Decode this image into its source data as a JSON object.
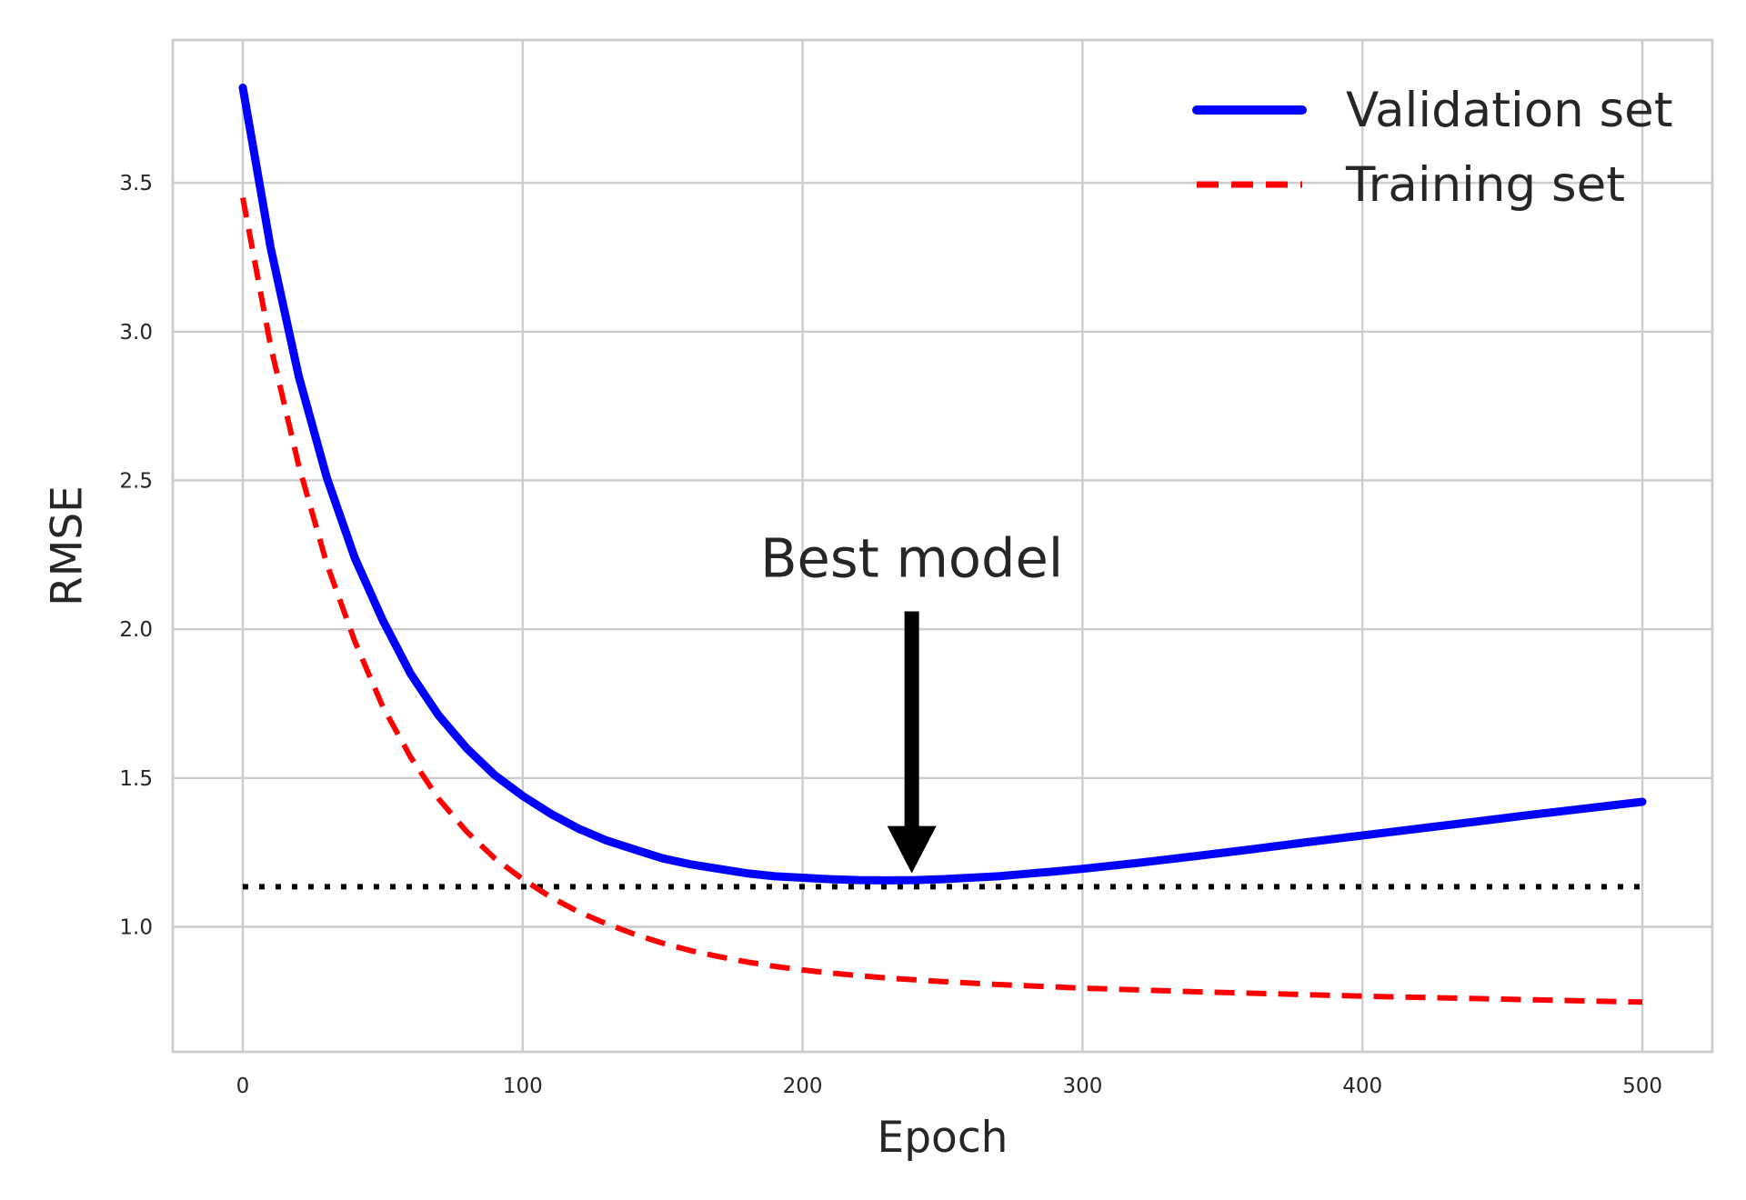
{
  "chart_data": {
    "type": "line",
    "title": "",
    "xlabel": "Epoch",
    "ylabel": "RMSE",
    "xlim": [
      -25,
      525
    ],
    "ylim": [
      0.58,
      3.98
    ],
    "xticks": [
      0,
      100,
      200,
      300,
      400,
      500
    ],
    "xtick_labels": [
      "0",
      "100",
      "200",
      "300",
      "400",
      "500"
    ],
    "yticks": [
      1.0,
      1.5,
      2.0,
      2.5,
      3.0,
      3.5
    ],
    "ytick_labels": [
      "1.0",
      "1.5",
      "2.0",
      "2.5",
      "3.0",
      "3.5"
    ],
    "grid": true,
    "legend_position": "top-right",
    "x": [
      0,
      10,
      20,
      30,
      40,
      50,
      60,
      70,
      80,
      90,
      100,
      110,
      120,
      130,
      140,
      150,
      160,
      170,
      180,
      190,
      200,
      210,
      220,
      230,
      240,
      250,
      260,
      270,
      280,
      290,
      300,
      320,
      340,
      360,
      380,
      400,
      420,
      440,
      460,
      480,
      500
    ],
    "series": [
      {
        "name": "Validation set",
        "color": "#0000ff",
        "style": "solid",
        "values": [
          3.82,
          3.28,
          2.85,
          2.51,
          2.24,
          2.03,
          1.85,
          1.71,
          1.6,
          1.51,
          1.44,
          1.38,
          1.33,
          1.29,
          1.26,
          1.23,
          1.21,
          1.195,
          1.18,
          1.17,
          1.165,
          1.16,
          1.157,
          1.156,
          1.157,
          1.16,
          1.165,
          1.17,
          1.178,
          1.186,
          1.195,
          1.215,
          1.237,
          1.26,
          1.284,
          1.307,
          1.33,
          1.353,
          1.376,
          1.398,
          1.42
        ]
      },
      {
        "name": "Training set",
        "color": "#ff0000",
        "style": "dashed",
        "values": [
          3.45,
          2.95,
          2.55,
          2.22,
          1.96,
          1.74,
          1.57,
          1.43,
          1.32,
          1.23,
          1.16,
          1.1,
          1.05,
          1.01,
          0.975,
          0.945,
          0.92,
          0.9,
          0.882,
          0.867,
          0.855,
          0.845,
          0.836,
          0.828,
          0.822,
          0.816,
          0.811,
          0.806,
          0.802,
          0.798,
          0.794,
          0.788,
          0.782,
          0.777,
          0.772,
          0.767,
          0.763,
          0.759,
          0.755,
          0.751,
          0.747
        ]
      }
    ],
    "reference_line": {
      "y": 1.135,
      "x_range": [
        0,
        500
      ],
      "color": "#000000",
      "style": "dotted"
    },
    "annotation": {
      "text": "Best model",
      "arrow_x": 239,
      "arrow_tail_y": 2.06,
      "arrow_head_y": 1.18
    }
  }
}
